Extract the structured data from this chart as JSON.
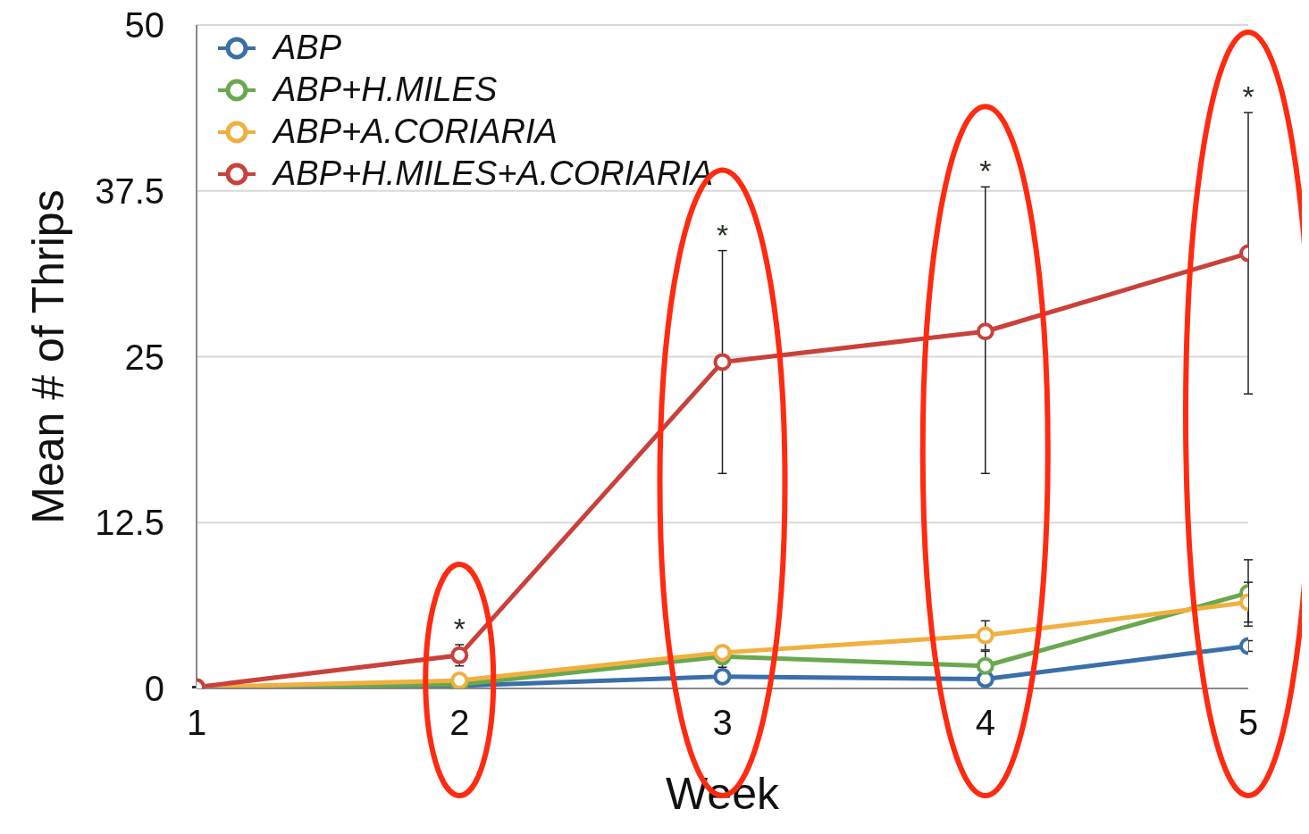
{
  "chart_data": {
    "type": "line",
    "xlabel": "Week",
    "ylabel": "Mean # of Thrips",
    "x": [
      1,
      2,
      3,
      4,
      5
    ],
    "xlim": [
      1,
      5
    ],
    "xticks": [
      1,
      2,
      3,
      4,
      5
    ],
    "ylim": [
      0,
      50
    ],
    "yticks": [
      0,
      12.5,
      25,
      37.5,
      50
    ],
    "grid": "y",
    "legend": "top left",
    "marker": "circle",
    "line_style": "solid",
    "series": [
      {
        "name": "ABP",
        "color": "#3a6fa8",
        "values": [
          0.1,
          0.2,
          0.9,
          0.7,
          3.2
        ],
        "errors": [
          null,
          null,
          null,
          0.5,
          0.4
        ]
      },
      {
        "name": "ABP+H.MILES",
        "color": "#6aa84f",
        "values": [
          0.1,
          0.3,
          2.4,
          1.7,
          7.2
        ],
        "errors": [
          null,
          null,
          0.8,
          1.1,
          2.5
        ]
      },
      {
        "name": "ABP+A.CORIARIA",
        "color": "#f0b040",
        "values": [
          0.1,
          0.6,
          2.7,
          4.0,
          6.5
        ],
        "errors": [
          null,
          null,
          null,
          1.1,
          1.5
        ]
      },
      {
        "name": "ABP+H.MILES+A.CORIARIA",
        "color": "#c8413b",
        "values": [
          0.1,
          2.5,
          24.6,
          26.9,
          32.8
        ],
        "errors": [
          null,
          0.8,
          [
            16.2,
            33.0
          ],
          [
            16.2,
            37.8
          ],
          [
            22.2,
            43.4
          ]
        ]
      }
    ],
    "annotations": [
      {
        "text": "*",
        "x": 2,
        "y": 3.3
      },
      {
        "text": "*",
        "x": 3,
        "y": 33.0
      },
      {
        "text": "*",
        "x": 4,
        "y": 37.8
      },
      {
        "text": "*",
        "x": 5,
        "y": 43.4
      }
    ]
  }
}
